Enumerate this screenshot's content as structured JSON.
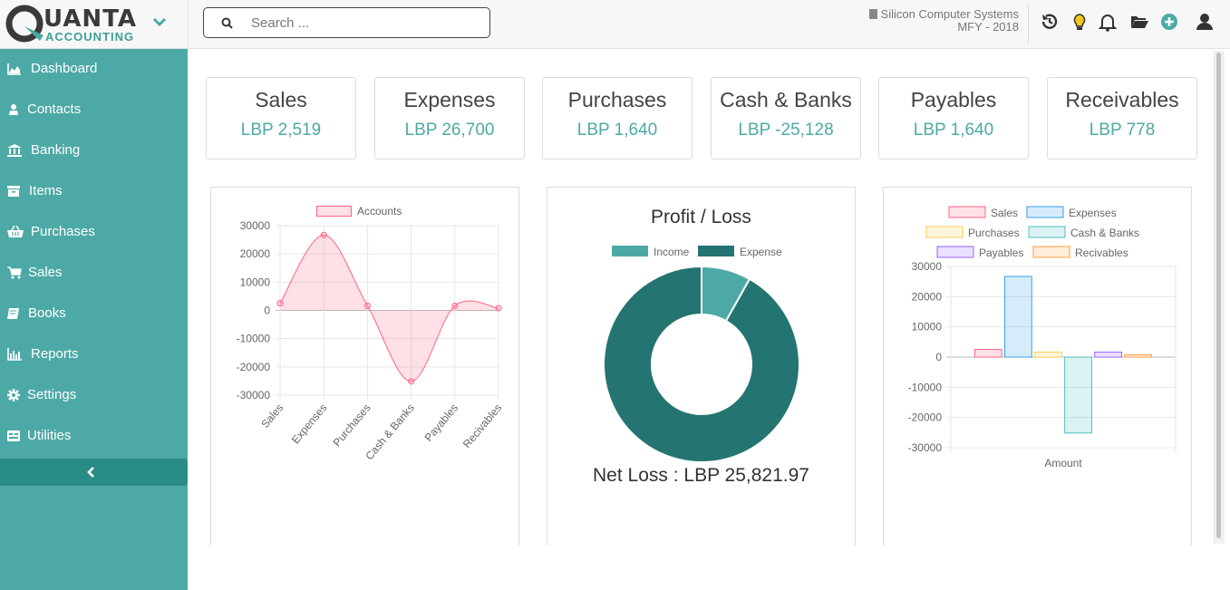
{
  "app": {
    "logo_word1": "UANTA",
    "logo_word2": "ACCOUNTING",
    "brand_color": "#4da9a5",
    "brand_dark": "#247472"
  },
  "search": {
    "placeholder": "Search ..."
  },
  "company": {
    "name": "Silicon Computer Systems",
    "fiscal": "MFY - 2018"
  },
  "header_icons": [
    "history-icon",
    "lightbulb-icon",
    "bell-icon",
    "folder-open-icon",
    "plus-circle-icon",
    "user-icon"
  ],
  "sidebar": {
    "items": [
      {
        "label": "Dashboard",
        "icon": "area-chart-icon"
      },
      {
        "label": "Contacts",
        "icon": "contacts-icon"
      },
      {
        "label": "Banking",
        "icon": "bank-icon"
      },
      {
        "label": "Items",
        "icon": "archive-icon"
      },
      {
        "label": "Purchases",
        "icon": "basket-icon"
      },
      {
        "label": "Sales",
        "icon": "cart-icon"
      },
      {
        "label": "Books",
        "icon": "book-icon"
      },
      {
        "label": "Reports",
        "icon": "bar-chart-icon"
      },
      {
        "label": "Settings",
        "icon": "gear-icon"
      },
      {
        "label": "Utilities",
        "icon": "utilities-icon"
      }
    ],
    "collapse_icon": "chevron-left-icon"
  },
  "cards": [
    {
      "title": "Sales",
      "value": "LBP 2,519"
    },
    {
      "title": "Expenses",
      "value": "LBP 26,700"
    },
    {
      "title": "Purchases",
      "value": "LBP 1,640"
    },
    {
      "title": "Cash & Banks",
      "value": "LBP -25,128"
    },
    {
      "title": "Payables",
      "value": "LBP 1,640"
    },
    {
      "title": "Receivables",
      "value": "LBP 778"
    }
  ],
  "chart_data": [
    {
      "type": "area",
      "legend": [
        "Accounts"
      ],
      "categories": [
        "Sales",
        "Expenses",
        "Purchases",
        "Cash & Banks",
        "Payables",
        "Recivables"
      ],
      "series": [
        {
          "name": "Accounts",
          "values": [
            2519,
            26700,
            1640,
            -25128,
            1640,
            778
          ]
        }
      ],
      "yticks": [
        30000,
        20000,
        10000,
        0,
        -10000,
        -20000,
        -30000
      ],
      "ylim": [
        -30000,
        30000
      ],
      "color": "#ff6384",
      "grid": true
    },
    {
      "type": "pie",
      "title": "Profit / Loss",
      "labels": [
        "Income",
        "Expense"
      ],
      "values": [
        2519,
        28340
      ],
      "colors": [
        "#4da9a5",
        "#247472"
      ],
      "footer": "Net Loss : LBP 25,821.97"
    },
    {
      "type": "bar",
      "categories": [
        "Amount"
      ],
      "xlabel": "Amount",
      "series": [
        {
          "name": "Sales",
          "values": [
            2519
          ],
          "color": "#ff6384"
        },
        {
          "name": "Expenses",
          "values": [
            26700
          ],
          "color": "#36a2eb"
        },
        {
          "name": "Purchases",
          "values": [
            1640
          ],
          "color": "#ffce56"
        },
        {
          "name": "Cash & Banks",
          "values": [
            -25128
          ],
          "color": "#4bc0c0"
        },
        {
          "name": "Payables",
          "values": [
            1640
          ],
          "color": "#9966ff"
        },
        {
          "name": "Recivables",
          "values": [
            778
          ],
          "color": "#ff9f40"
        }
      ],
      "yticks": [
        30000,
        20000,
        10000,
        0,
        -10000,
        -20000,
        -30000
      ],
      "ylim": [
        -30000,
        30000
      ],
      "grid": true,
      "legend_position": "top"
    }
  ]
}
